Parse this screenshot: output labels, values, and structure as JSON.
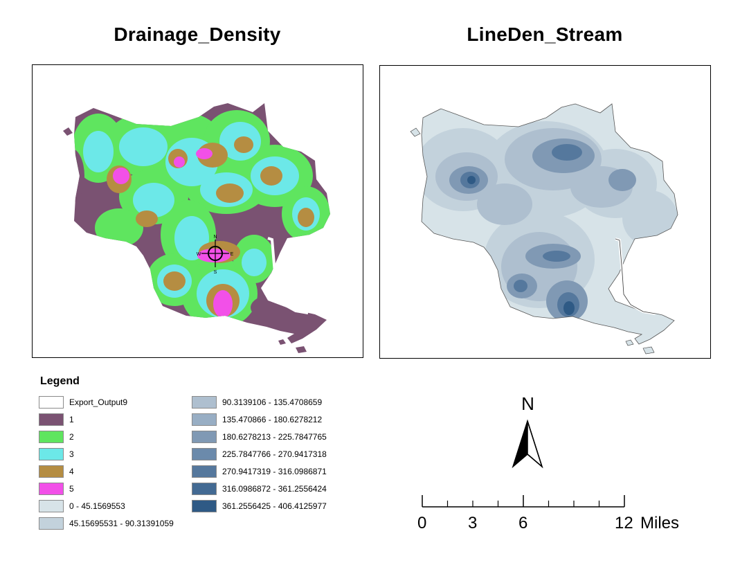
{
  "maps": {
    "left": {
      "title": "Drainage_Density",
      "compass_labels": [
        "N",
        "E",
        "S",
        "W"
      ]
    },
    "right": {
      "title": "LineDen_Stream"
    }
  },
  "legend": {
    "title": "Legend",
    "items": [
      {
        "label": "Export_Output9",
        "color": "#ffffff"
      },
      {
        "label": "1",
        "color": "#7a5272"
      },
      {
        "label": "2",
        "color": "#5fe55f"
      },
      {
        "label": "3",
        "color": "#6ce8e8"
      },
      {
        "label": "4",
        "color": "#b58d42"
      },
      {
        "label": "5",
        "color": "#f250e8"
      },
      {
        "label": "0 - 45.1569553",
        "color": "#d7e3e8"
      },
      {
        "label": "45.15695531 - 90.31391059",
        "color": "#c3d2dc"
      },
      {
        "label": "90.3139106 - 135.4708659",
        "color": "#aebfcf"
      },
      {
        "label": "135.470866 - 180.6278212",
        "color": "#98aec4"
      },
      {
        "label": "180.6278213 - 225.7847765",
        "color": "#8099b4"
      },
      {
        "label": "225.7847766 - 270.9417318",
        "color": "#6b8aab"
      },
      {
        "label": "270.9417319 - 316.0986871",
        "color": "#55789d"
      },
      {
        "label": "316.0986872 - 361.2556424",
        "color": "#436a93"
      },
      {
        "label": "361.2556425 - 406.4125977",
        "color": "#2f5a85"
      }
    ]
  },
  "north_arrow": {
    "label": "N"
  },
  "scale_bar": {
    "labels": [
      "0",
      "3",
      "6",
      "12"
    ],
    "units": "Miles"
  }
}
